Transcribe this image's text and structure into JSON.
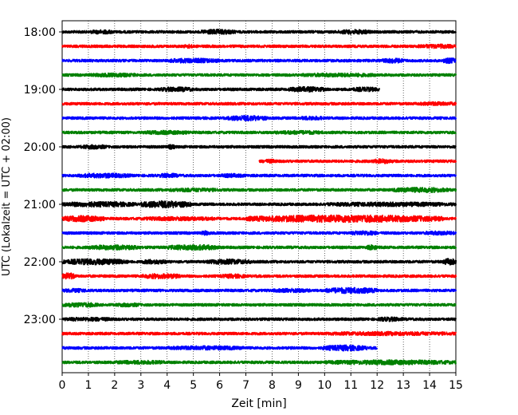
{
  "chart_data": {
    "type": "line",
    "title": "",
    "xlabel": "Zeit  [min]",
    "ylabel": "UTC (Lokalzeit = UTC + 02:00)",
    "xlim": [
      0,
      15
    ],
    "x_ticks": [
      "0",
      "1",
      "2",
      "3",
      "4",
      "5",
      "6",
      "7",
      "8",
      "9",
      "10",
      "11",
      "12",
      "13",
      "14",
      "15"
    ],
    "y_tick_labels": [
      "18:00",
      "19:00",
      "20:00",
      "21:00",
      "22:00",
      "23:00"
    ],
    "trace_interval_minutes": 15,
    "grid": "vertical dotted lines at each minute",
    "color_cycle": [
      "#000000",
      "#ff0000",
      "#0000ff",
      "#008000"
    ],
    "traces": [
      {
        "time": "18:00",
        "color": "#000000",
        "bursts": [
          [
            5.3,
            6.6,
            1.5
          ],
          [
            10.5,
            11.8,
            1.3
          ],
          [
            1.0,
            2.0,
            1.1
          ]
        ]
      },
      {
        "time": "18:15",
        "color": "#ff0000",
        "bursts": [
          [
            4.6,
            5.0,
            1.0
          ],
          [
            13.5,
            15.0,
            1.1
          ]
        ]
      },
      {
        "time": "18:30",
        "color": "#0000ff",
        "bursts": [
          [
            4.0,
            6.0,
            1.3
          ],
          [
            12.2,
            13.0,
            1.4
          ],
          [
            14.5,
            15.0,
            1.6
          ]
        ]
      },
      {
        "time": "18:45",
        "color": "#008000",
        "bursts": [
          [
            1.0,
            3.0,
            1.0
          ],
          [
            9.0,
            12.0,
            1.0
          ]
        ]
      },
      {
        "time": "19:00",
        "color": "#000000",
        "bursts": [
          [
            3.7,
            5.0,
            1.3
          ],
          [
            8.6,
            10.0,
            1.5
          ],
          [
            11.0,
            12.1,
            1.2
          ]
        ],
        "end": 12.1
      },
      {
        "time": "19:15",
        "color": "#ff0000",
        "bursts": [
          [
            13.6,
            15.0,
            1.0
          ]
        ]
      },
      {
        "time": "19:30",
        "color": "#0000ff",
        "bursts": [
          [
            6.3,
            7.8,
            1.6
          ],
          [
            9.0,
            10.0,
            1.0
          ]
        ]
      },
      {
        "time": "19:45",
        "color": "#008000",
        "bursts": [
          [
            3.0,
            5.0,
            1.0
          ],
          [
            8.0,
            10.0,
            1.0
          ]
        ]
      },
      {
        "time": "20:00",
        "color": "#000000",
        "bursts": [
          [
            0.7,
            1.7,
            1.2
          ],
          [
            4.0,
            4.3,
            1.3
          ]
        ]
      },
      {
        "time": "20:15",
        "color": "#ff0000",
        "bursts": [
          [
            11.8,
            12.6,
            1.3
          ],
          [
            7.6,
            8.2,
            1.0
          ]
        ],
        "start": 7.5
      },
      {
        "time": "20:30",
        "color": "#0000ff",
        "bursts": [
          [
            0.6,
            2.6,
            1.3
          ],
          [
            3.7,
            4.4,
            1.3
          ],
          [
            6.0,
            7.0,
            1.0
          ]
        ]
      },
      {
        "time": "20:45",
        "color": "#008000",
        "bursts": [
          [
            12.6,
            14.8,
            1.5
          ],
          [
            4.0,
            6.0,
            1.0
          ]
        ]
      },
      {
        "time": "21:00",
        "color": "#000000",
        "bursts": [
          [
            0.0,
            2.8,
            1.5
          ],
          [
            3.0,
            4.9,
            2.2
          ],
          [
            10.0,
            15.0,
            1.2
          ]
        ]
      },
      {
        "time": "21:15",
        "color": "#ff0000",
        "bursts": [
          [
            0.0,
            1.6,
            1.8
          ],
          [
            7.0,
            14.5,
            2.3
          ],
          [
            3.0,
            6.0,
            1.1
          ]
        ]
      },
      {
        "time": "21:30",
        "color": "#0000ff",
        "bursts": [
          [
            5.3,
            5.6,
            1.3
          ],
          [
            11.0,
            12.0,
            1.3
          ],
          [
            13.8,
            15.0,
            1.1
          ]
        ]
      },
      {
        "time": "21:45",
        "color": "#008000",
        "bursts": [
          [
            1.0,
            3.0,
            1.4
          ],
          [
            4.0,
            6.0,
            1.6
          ],
          [
            11.6,
            12.0,
            1.5
          ]
        ]
      },
      {
        "time": "22:00",
        "color": "#000000",
        "bursts": [
          [
            0.0,
            2.5,
            1.8
          ],
          [
            5.5,
            7.2,
            1.5
          ],
          [
            14.5,
            15.0,
            2.0
          ],
          [
            3.0,
            4.0,
            1.3
          ]
        ]
      },
      {
        "time": "22:15",
        "color": "#ff0000",
        "bursts": [
          [
            0.0,
            0.5,
            2.0
          ],
          [
            3.0,
            4.5,
            1.5
          ],
          [
            6.0,
            7.0,
            1.1
          ]
        ]
      },
      {
        "time": "22:30",
        "color": "#0000ff",
        "bursts": [
          [
            10.0,
            12.0,
            1.8
          ],
          [
            8.0,
            9.5,
            1.1
          ],
          [
            0.0,
            1.0,
            1.0
          ]
        ]
      },
      {
        "time": "22:45",
        "color": "#008000",
        "bursts": [
          [
            0.0,
            1.4,
            1.3
          ],
          [
            2.0,
            3.0,
            1.0
          ]
        ]
      },
      {
        "time": "23:00",
        "color": "#000000",
        "bursts": [
          [
            12.0,
            13.0,
            1.2
          ],
          [
            0.0,
            2.0,
            1.0
          ]
        ]
      },
      {
        "time": "23:15",
        "color": "#ff0000",
        "bursts": [
          [
            10.0,
            15.0,
            1.0
          ]
        ]
      },
      {
        "time": "23:30",
        "color": "#0000ff",
        "bursts": [
          [
            9.9,
            11.6,
            1.7
          ],
          [
            4.0,
            7.0,
            1.1
          ]
        ],
        "end": 12.0
      },
      {
        "time": "23:45",
        "color": "#008000",
        "bursts": [
          [
            10.0,
            15.0,
            1.3
          ],
          [
            2.0,
            4.0,
            1.0
          ]
        ]
      }
    ]
  }
}
